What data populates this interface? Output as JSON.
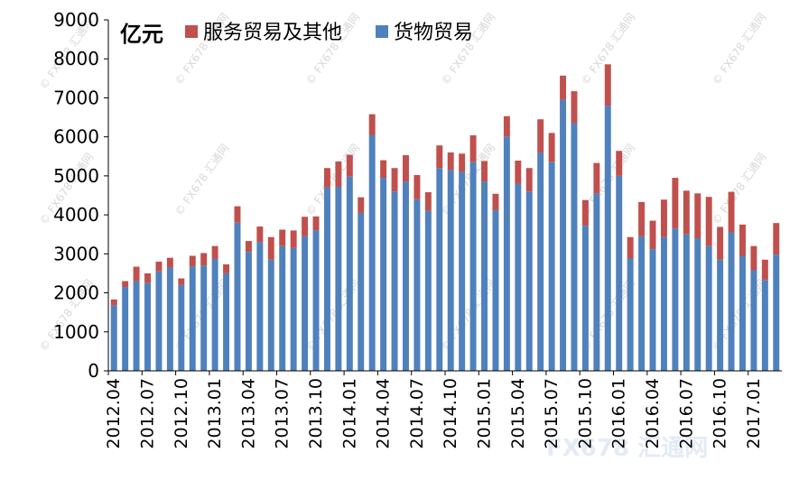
{
  "chart_data": {
    "type": "bar",
    "stacked": true,
    "unit_label": "亿元",
    "ylim": [
      0,
      9000
    ],
    "y_ticks": [
      0,
      1000,
      2000,
      3000,
      4000,
      5000,
      6000,
      7000,
      8000,
      9000
    ],
    "grid": false,
    "legend_position": "top",
    "categories": [
      "2012.04",
      "2012.05",
      "2012.06",
      "2012.07",
      "2012.08",
      "2012.09",
      "2012.10",
      "2012.11",
      "2012.12",
      "2013.01",
      "2013.02",
      "2013.03",
      "2013.04",
      "2013.05",
      "2013.06",
      "2013.07",
      "2013.08",
      "2013.09",
      "2013.10",
      "2013.11",
      "2013.12",
      "2014.01",
      "2014.02",
      "2014.03",
      "2014.04",
      "2014.05",
      "2014.06",
      "2014.07",
      "2014.08",
      "2014.09",
      "2014.10",
      "2014.11",
      "2014.12",
      "2015.01",
      "2015.02",
      "2015.03",
      "2015.04",
      "2015.05",
      "2015.06",
      "2015.07",
      "2015.08",
      "2015.09",
      "2015.10",
      "2015.11",
      "2015.12",
      "2016.01",
      "2016.02",
      "2016.03",
      "2016.04",
      "2016.05",
      "2016.06",
      "2016.07",
      "2016.08",
      "2016.09",
      "2016.10",
      "2016.11",
      "2016.12",
      "2017.01",
      "2017.02",
      "2017.03"
    ],
    "x_tick_labels": [
      "2012.04",
      "2012.07",
      "2012.10",
      "2013.01",
      "2013.04",
      "2013.07",
      "2013.10",
      "2014.01",
      "2014.04",
      "2014.07",
      "2014.10",
      "2015.01",
      "2015.04",
      "2015.07",
      "2015.10",
      "2016.01",
      "2016.04",
      "2016.07",
      "2016.10",
      "2017.01"
    ],
    "series": [
      {
        "name": "货物贸易",
        "color": "#4F81BD",
        "values": [
          1680,
          2150,
          2300,
          2250,
          2550,
          2650,
          2200,
          2680,
          2700,
          2870,
          2500,
          3800,
          3050,
          3300,
          2850,
          3200,
          3150,
          3450,
          3600,
          4700,
          4720,
          4980,
          4050,
          6050,
          4950,
          4600,
          4850,
          4400,
          4100,
          5200,
          5150,
          5100,
          5350,
          4850,
          4120,
          6000,
          4800,
          4600,
          5600,
          5350,
          6950,
          6350,
          3720,
          4550,
          6800,
          5000,
          2880,
          3450,
          3120,
          3430,
          3650,
          3500,
          3400,
          3200,
          2850,
          3550,
          2950,
          2580,
          2330,
          2980
        ]
      },
      {
        "name": "服务贸易及其他",
        "color": "#C0504D",
        "values": [
          150,
          150,
          370,
          250,
          250,
          250,
          170,
          270,
          320,
          330,
          230,
          420,
          280,
          400,
          580,
          420,
          450,
          500,
          360,
          500,
          650,
          560,
          400,
          530,
          450,
          600,
          680,
          620,
          480,
          580,
          450,
          470,
          690,
          530,
          420,
          530,
          590,
          600,
          850,
          750,
          620,
          820,
          660,
          780,
          1060,
          640,
          550,
          880,
          730,
          960,
          1300,
          1120,
          1150,
          1260,
          840,
          1040,
          800,
          620,
          520,
          810
        ]
      }
    ]
  },
  "watermarks": {
    "small": "© FX678 汇通网",
    "corner": "FX678 汇通网"
  }
}
